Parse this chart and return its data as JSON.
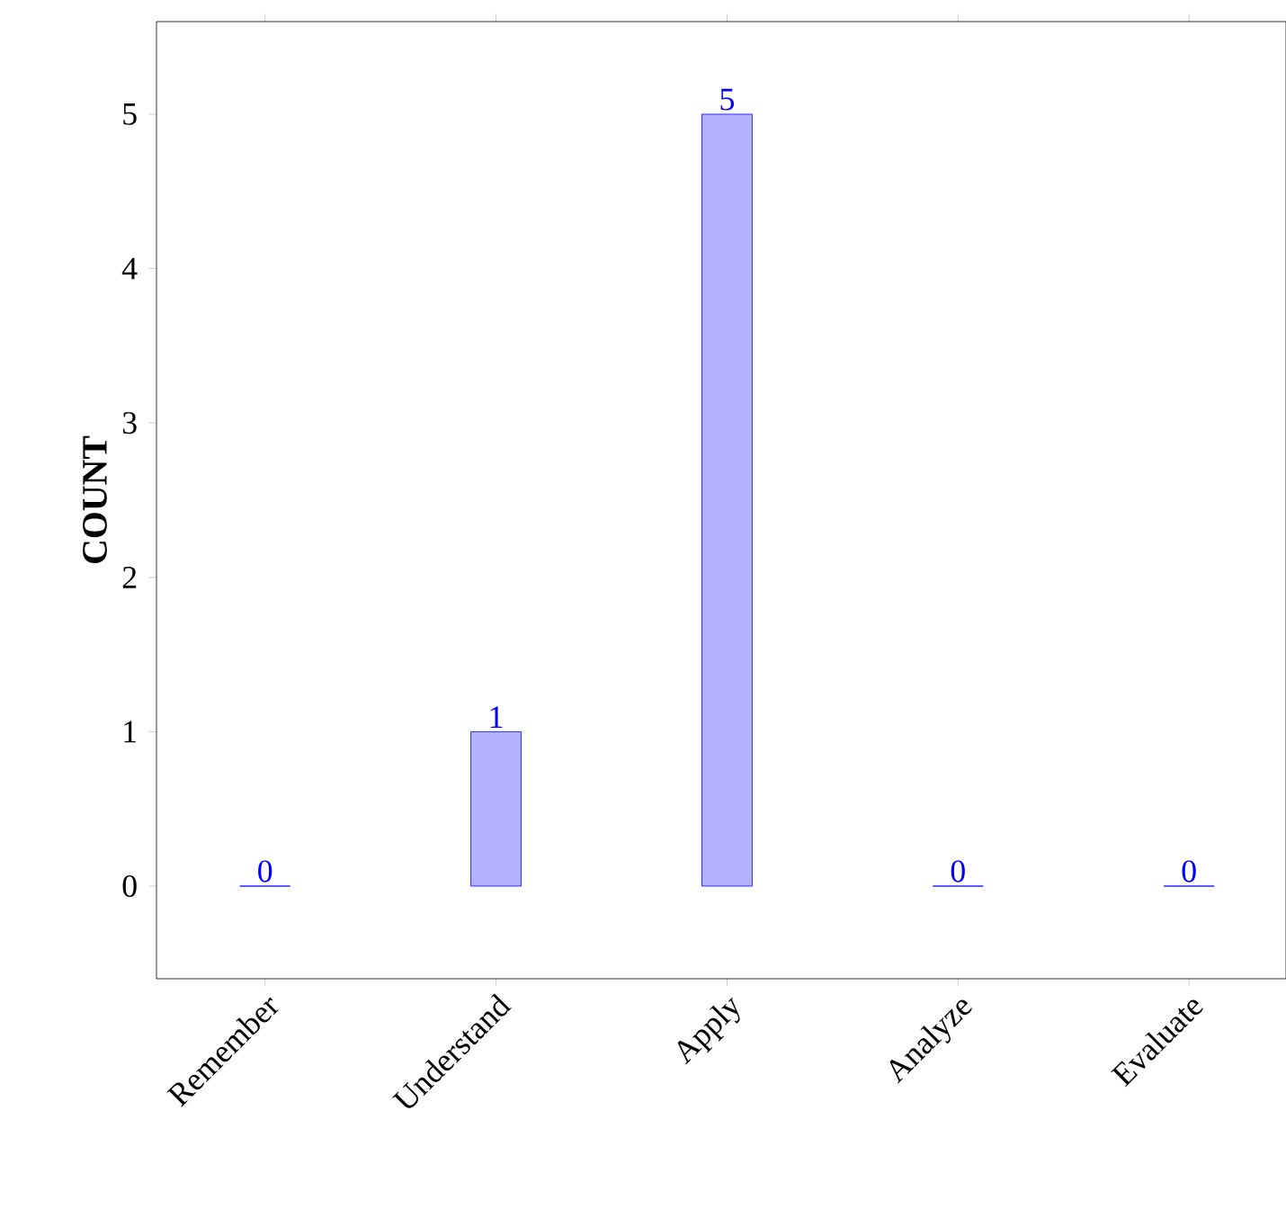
{
  "chart_data": {
    "type": "bar",
    "ylabel": "COUNT",
    "categories": [
      "Remember",
      "Understand",
      "Apply",
      "Analyze",
      "Evaluate"
    ],
    "values": [
      0,
      1,
      5,
      0,
      0
    ],
    "color": "#0000ff",
    "data_labels": true,
    "ylim": [
      -0.6,
      5.6
    ],
    "yticks": [
      0,
      1,
      2,
      3,
      4,
      5
    ]
  }
}
